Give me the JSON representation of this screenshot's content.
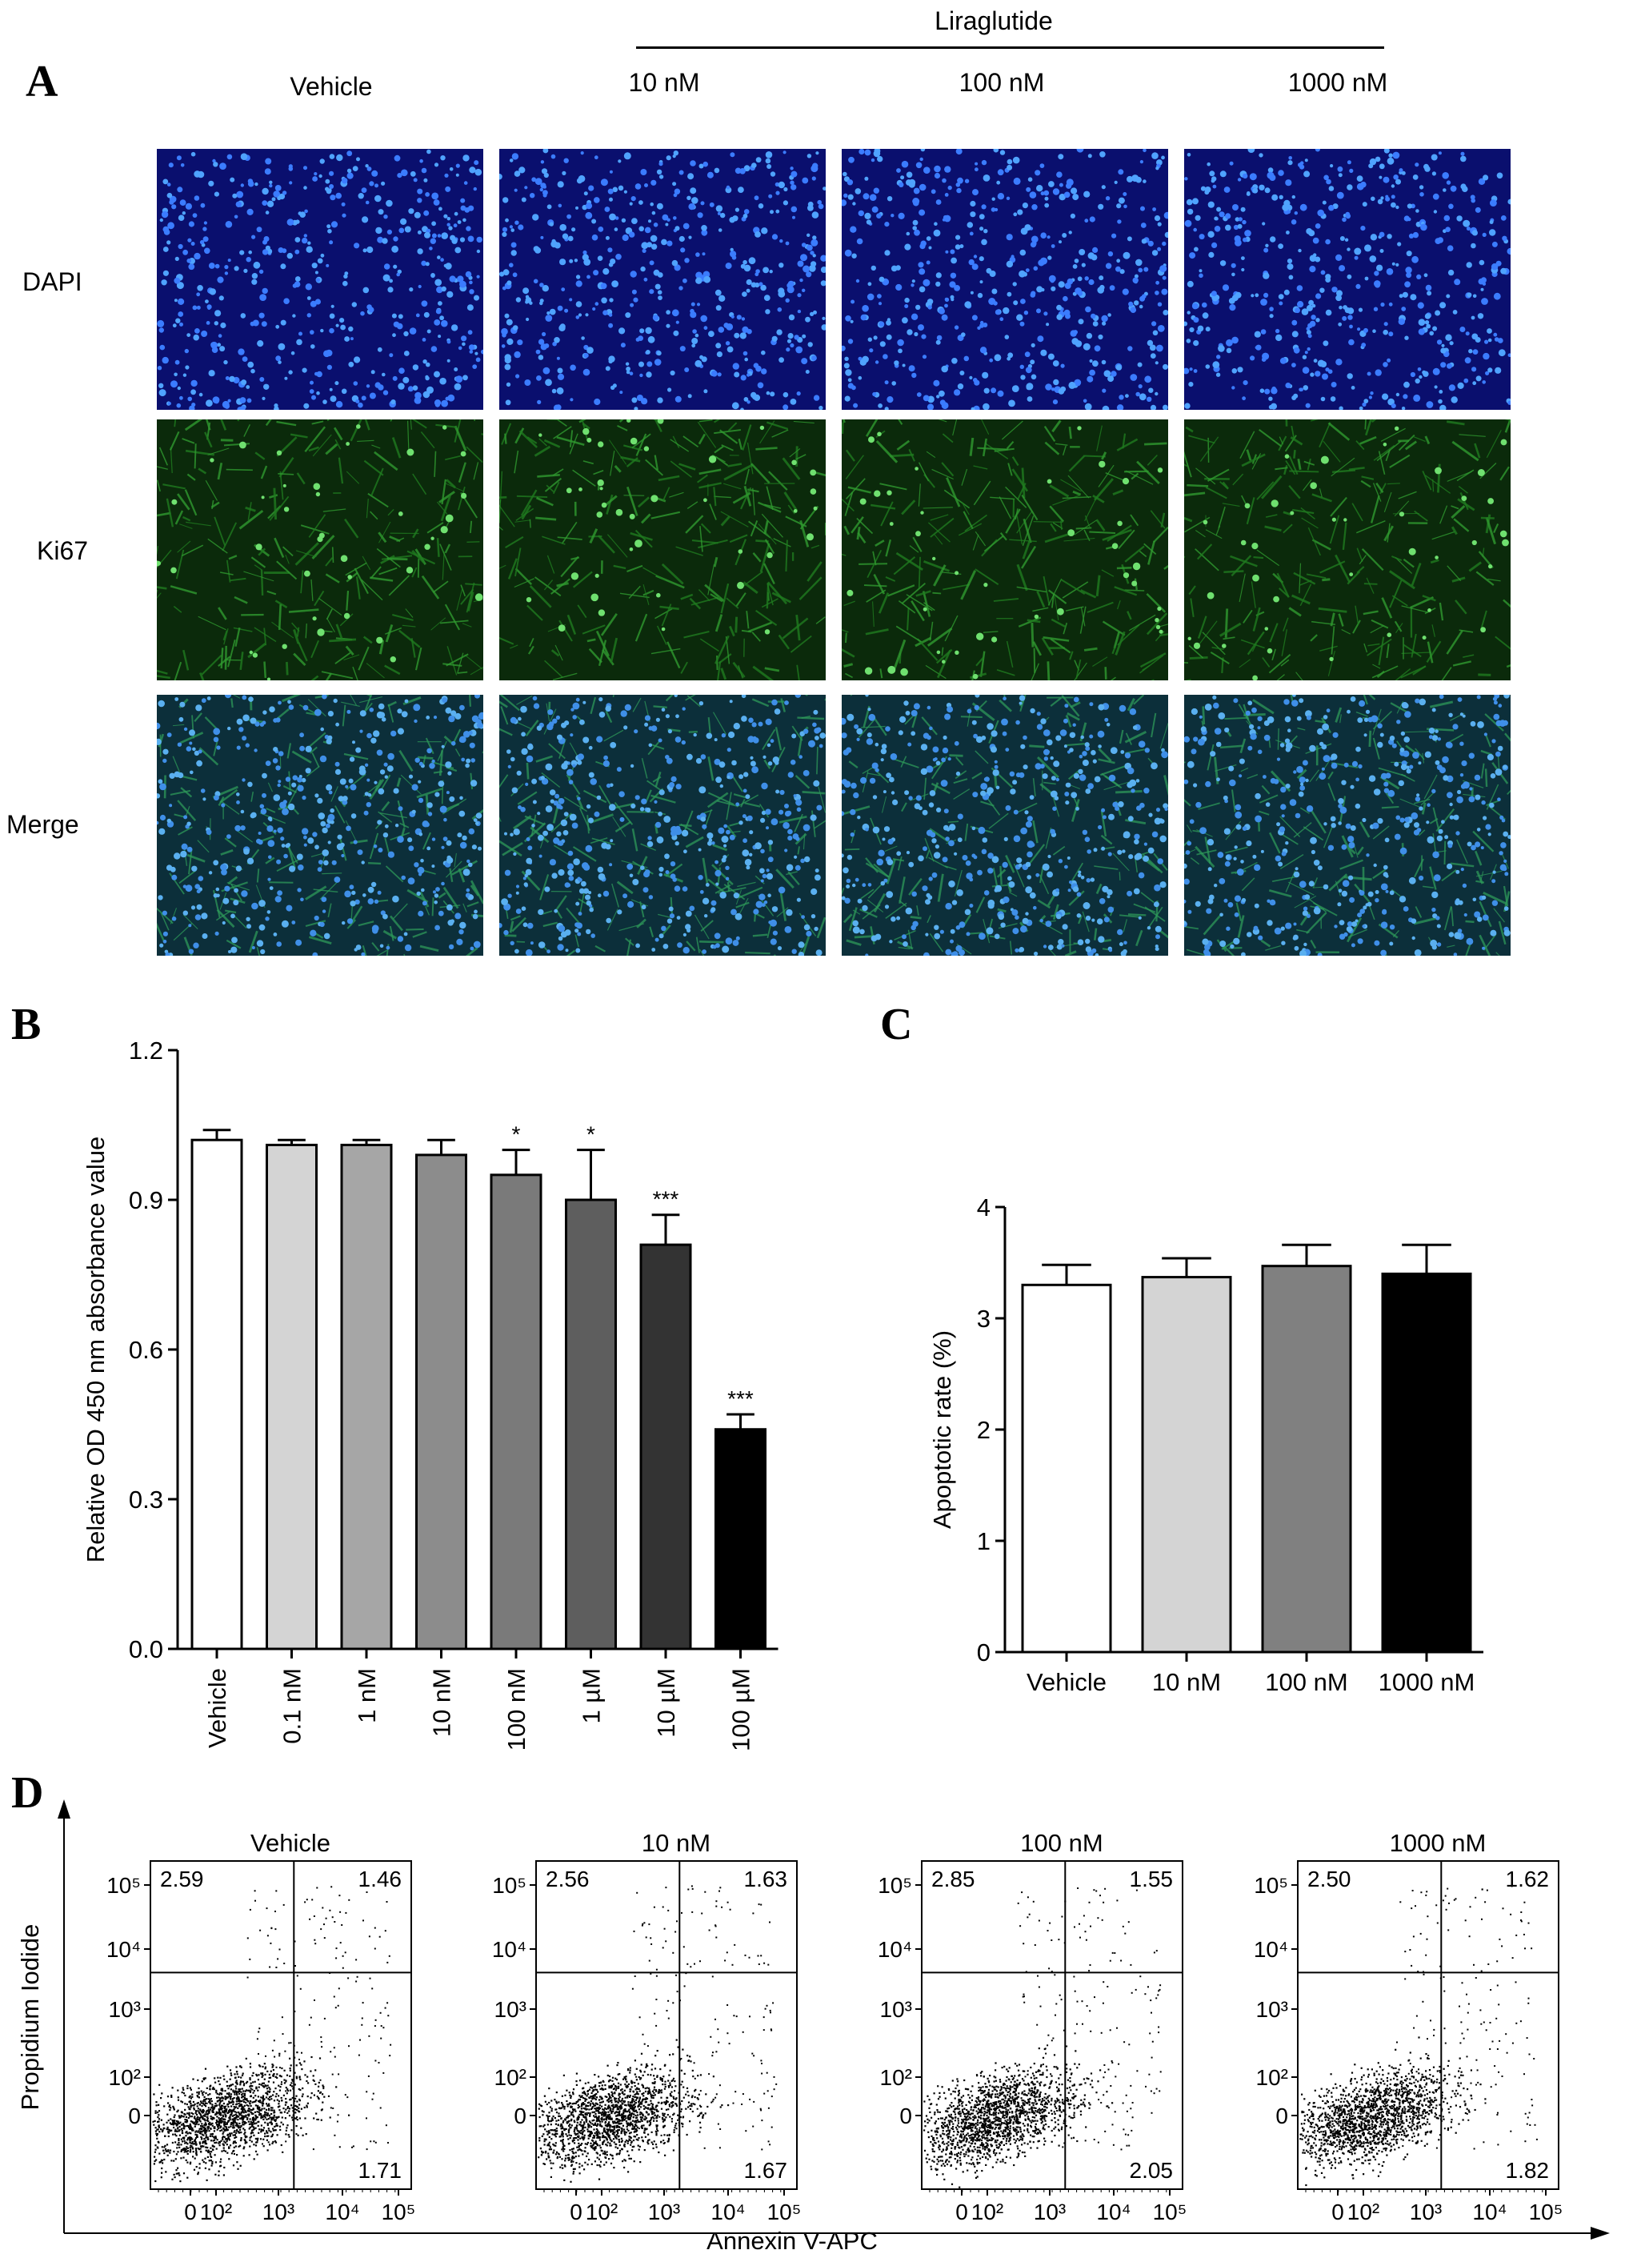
{
  "panel_a": {
    "label": "A",
    "group_label": "Liraglutide",
    "columns": [
      "Vehicle",
      "10 nM",
      "100 nM",
      "1000 nM"
    ],
    "rows": [
      "DAPI",
      "Ki67",
      "Merge"
    ]
  },
  "panel_b": {
    "label": "B"
  },
  "panel_c": {
    "label": "C"
  },
  "panel_d": {
    "label": "D",
    "ylabel": "Propidium Iodide",
    "xlabel": "Annexin V-APC",
    "titles": [
      "Vehicle",
      "10 nM",
      "100 nM",
      "1000 nM"
    ],
    "quadrants": [
      {
        "ul": "2.59",
        "ur": "1.46",
        "lr": "1.71"
      },
      {
        "ul": "2.56",
        "ur": "1.63",
        "lr": "1.67"
      },
      {
        "ul": "2.85",
        "ur": "1.55",
        "lr": "2.05"
      },
      {
        "ul": "2.50",
        "ur": "1.62",
        "lr": "1.82"
      }
    ],
    "x_ticks": [
      "0",
      "10²",
      "10³",
      "10⁴",
      "10⁵"
    ],
    "y_ticks": [
      "10⁵",
      "10⁴",
      "10³",
      "10²",
      "0"
    ]
  },
  "chart_data": [
    {
      "type": "bar",
      "categories": [
        "Vehicle",
        "0.1 nM",
        "1 nM",
        "10 nM",
        "100 nM",
        "1 µM",
        "10 µM",
        "100 µM"
      ],
      "values": [
        1.02,
        1.01,
        1.01,
        0.99,
        0.95,
        0.9,
        0.81,
        0.44
      ],
      "errors": [
        0.02,
        0.01,
        0.01,
        0.03,
        0.05,
        0.1,
        0.06,
        0.03
      ],
      "significance": [
        "",
        "",
        "",
        "",
        "*",
        "*",
        "***",
        "***"
      ],
      "colors": [
        "#ffffff",
        "#d4d4d4",
        "#a6a6a6",
        "#8c8c8c",
        "#7a7a7a",
        "#5e5e5e",
        "#333333",
        "#000000"
      ],
      "ylabel": "Relative OD 450 nm absorbance value",
      "ylim": [
        0,
        1.2
      ],
      "yticks": [
        "0.0",
        "0.3",
        "0.6",
        "0.9",
        "1.2"
      ]
    },
    {
      "type": "bar",
      "categories": [
        "Vehicle",
        "10 nM",
        "100 nM",
        "1000 nM"
      ],
      "values": [
        3.3,
        3.37,
        3.47,
        3.4
      ],
      "errors": [
        0.18,
        0.17,
        0.19,
        0.26
      ],
      "colors": [
        "#ffffff",
        "#d4d4d4",
        "#808080",
        "#000000"
      ],
      "ylabel": "Apoptotic rate (%)",
      "ylim": [
        0,
        4
      ],
      "yticks": [
        "0",
        "1",
        "2",
        "3",
        "4"
      ]
    }
  ]
}
